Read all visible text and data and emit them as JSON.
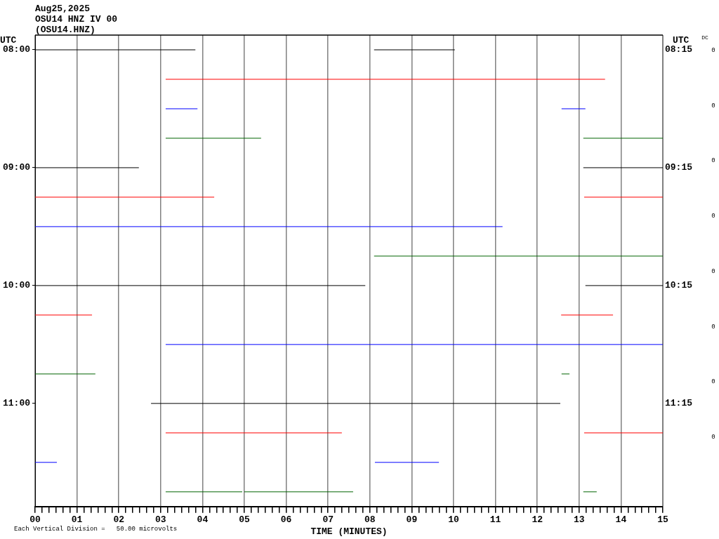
{
  "chart_data": {
    "type": "line",
    "title": "Aug25,2025",
    "subtitle": "OSU14 HNZ IV 00\n(OSU14.HNZ)",
    "xlabel": "TIME (MINUTES)",
    "ylabel": "UTC",
    "y2label": "UTC",
    "annotations": [
      "DC",
      "Each Vertical Division =   50.00 microvolts",
      "0",
      "0",
      "0",
      "0",
      "0",
      "0",
      "0",
      "0"
    ],
    "xlim": [
      0,
      15
    ],
    "xticks": [
      {
        "value": 0,
        "label": "00"
      },
      {
        "value": 0.1667,
        "label": null
      },
      {
        "value": 0.3333,
        "label": null
      },
      {
        "value": 0.5,
        "label": null
      },
      {
        "value": 0.6667,
        "label": null
      },
      {
        "value": 0.8333,
        "label": null
      },
      {
        "value": 1,
        "label": "01"
      },
      {
        "value": 1.1667,
        "label": null
      },
      {
        "value": 1.3333,
        "label": null
      },
      {
        "value": 1.5,
        "label": null
      },
      {
        "value": 1.6667,
        "label": null
      },
      {
        "value": 1.8333,
        "label": null
      },
      {
        "value": 2,
        "label": "02"
      },
      {
        "value": 2.1667,
        "label": null
      },
      {
        "value": 2.3333,
        "label": null
      },
      {
        "value": 2.5,
        "label": null
      },
      {
        "value": 2.6667,
        "label": null
      },
      {
        "value": 2.8333,
        "label": null
      },
      {
        "value": 3,
        "label": "03"
      },
      {
        "value": 3.1667,
        "label": null
      },
      {
        "value": 3.3333,
        "label": null
      },
      {
        "value": 3.5,
        "label": null
      },
      {
        "value": 3.6667,
        "label": null
      },
      {
        "value": 3.8333,
        "label": null
      },
      {
        "value": 4,
        "label": "04"
      },
      {
        "value": 4.1667,
        "label": null
      },
      {
        "value": 4.3333,
        "label": null
      },
      {
        "value": 4.5,
        "label": null
      },
      {
        "value": 4.6667,
        "label": null
      },
      {
        "value": 4.8333,
        "label": null
      },
      {
        "value": 5,
        "label": "05"
      },
      {
        "value": 5.1667,
        "label": null
      },
      {
        "value": 5.3333,
        "label": null
      },
      {
        "value": 5.5,
        "label": null
      },
      {
        "value": 5.6667,
        "label": null
      },
      {
        "value": 5.8333,
        "label": null
      },
      {
        "value": 6,
        "label": "06"
      },
      {
        "value": 6.1667,
        "label": null
      },
      {
        "value": 6.3333,
        "label": null
      },
      {
        "value": 6.5,
        "label": null
      },
      {
        "value": 6.6667,
        "label": null
      },
      {
        "value": 6.8333,
        "label": null
      },
      {
        "value": 7,
        "label": "07"
      },
      {
        "value": 7.1667,
        "label": null
      },
      {
        "value": 7.3333,
        "label": null
      },
      {
        "value": 7.5,
        "label": null
      },
      {
        "value": 7.6667,
        "label": null
      },
      {
        "value": 7.8333,
        "label": null
      },
      {
        "value": 8,
        "label": "08"
      },
      {
        "value": 8.1667,
        "label": null
      },
      {
        "value": 8.3333,
        "label": null
      },
      {
        "value": 8.5,
        "label": null
      },
      {
        "value": 8.6667,
        "label": null
      },
      {
        "value": 8.8333,
        "label": null
      },
      {
        "value": 9,
        "label": "09"
      },
      {
        "value": 9.1667,
        "label": null
      },
      {
        "value": 9.3333,
        "label": null
      },
      {
        "value": 9.5,
        "label": null
      },
      {
        "value": 9.6667,
        "label": null
      },
      {
        "value": 9.8333,
        "label": null
      },
      {
        "value": 10,
        "label": "10"
      },
      {
        "value": 10.1667,
        "label": null
      },
      {
        "value": 10.3333,
        "label": null
      },
      {
        "value": 10.5,
        "label": null
      },
      {
        "value": 10.6667,
        "label": null
      },
      {
        "value": 10.8333,
        "label": null
      },
      {
        "value": 11,
        "label": "11"
      },
      {
        "value": 11.1667,
        "label": null
      },
      {
        "value": 11.3333,
        "label": null
      },
      {
        "value": 11.5,
        "label": null
      },
      {
        "value": 11.6667,
        "label": null
      },
      {
        "value": 11.8333,
        "label": null
      },
      {
        "value": 12,
        "label": "12"
      },
      {
        "value": 12.1667,
        "label": null
      },
      {
        "value": 12.3333,
        "label": null
      },
      {
        "value": 12.5,
        "label": null
      },
      {
        "value": 12.6667,
        "label": null
      },
      {
        "value": 12.8333,
        "label": null
      },
      {
        "value": 13,
        "label": "13"
      },
      {
        "value": 13.1667,
        "label": null
      },
      {
        "value": 13.3333,
        "label": null
      },
      {
        "value": 13.5,
        "label": null
      },
      {
        "value": 13.6667,
        "label": null
      },
      {
        "value": 13.8333,
        "label": null
      },
      {
        "value": 14,
        "label": "14"
      },
      {
        "value": 14.1667,
        "label": null
      },
      {
        "value": 14.3333,
        "label": null
      },
      {
        "value": 14.5,
        "label": null
      },
      {
        "value": 14.6667,
        "label": null
      },
      {
        "value": 14.8333,
        "label": null
      },
      {
        "value": 15,
        "label": "15"
      }
    ],
    "ylim": [
      11.875,
      7.875
    ],
    "yticks": [
      {
        "value": 8,
        "label": "08:00"
      },
      {
        "value": 9,
        "label": "09:00"
      },
      {
        "value": 10,
        "label": "10:00"
      },
      {
        "value": 11,
        "label": "11:00"
      }
    ],
    "y2lim": [
      12.125,
      8.125
    ],
    "y2ticks": [
      {
        "value": 8.25,
        "label": "08:15"
      },
      {
        "value": 9.25,
        "label": "09:15"
      },
      {
        "value": 10.25,
        "label": "10:15"
      },
      {
        "value": 11.25,
        "label": "11:15"
      }
    ],
    "grid": "x",
    "legend": false,
    "series": [
      {
        "color": "#000000",
        "x": [
          0,
          3.83,
          6,
          8.1,
          10.03
        ],
        "values": [
          8,
          8,
          null,
          8,
          8
        ]
      },
      {
        "color": "#ff0000",
        "x": [
          3.12,
          13.62
        ],
        "values": [
          8.25,
          8.25
        ]
      },
      {
        "color": "#0000ff",
        "x": [
          3.12,
          3.88,
          8,
          12.58,
          13.15
        ],
        "values": [
          8.5,
          8.5,
          null,
          8.5,
          8.5
        ]
      },
      {
        "color": "#006400",
        "x": [
          3.12,
          5.4,
          9,
          13.1,
          15
        ],
        "values": [
          8.75,
          8.75,
          null,
          8.75,
          8.75
        ]
      },
      {
        "color": "#000000",
        "x": [
          0,
          2.48,
          8,
          13.1,
          15
        ],
        "values": [
          9,
          9,
          null,
          9,
          9
        ]
      },
      {
        "color": "#ff0000",
        "x": [
          0,
          4.28,
          8,
          13.12,
          15
        ],
        "values": [
          9.25,
          9.25,
          null,
          9.25,
          9.25
        ]
      },
      {
        "color": "#0000ff",
        "x": [
          0,
          11.17
        ],
        "values": [
          9.5,
          9.5
        ]
      },
      {
        "color": "#006400",
        "x": [
          8.1,
          15
        ],
        "values": [
          9.75,
          9.75
        ]
      },
      {
        "color": "#000000",
        "x": [
          0,
          7.89,
          10,
          13.15,
          15
        ],
        "values": [
          10,
          10,
          null,
          10,
          10
        ]
      },
      {
        "color": "#ff0000",
        "x": [
          0,
          1.36,
          7,
          12.57,
          13.81
        ],
        "values": [
          10.25,
          10.25,
          null,
          10.25,
          10.25
        ]
      },
      {
        "color": "#0000ff",
        "x": [
          3.12,
          15
        ],
        "values": [
          10.5,
          10.5
        ]
      },
      {
        "color": "#006400",
        "x": [
          0,
          1.44,
          7,
          12.58,
          12.77
        ],
        "values": [
          10.75,
          10.75,
          null,
          10.75,
          10.75
        ]
      },
      {
        "color": "#000000",
        "x": [
          2.77,
          12.55
        ],
        "values": [
          11,
          11
        ]
      },
      {
        "color": "#ff0000",
        "x": [
          3.12,
          7.33,
          10,
          13.12,
          15
        ],
        "values": [
          11.25,
          11.25,
          null,
          11.25,
          11.25
        ]
      },
      {
        "color": "#0000ff",
        "x": [
          0,
          0.52,
          4,
          8.12,
          9.65
        ],
        "values": [
          11.5,
          11.5,
          null,
          11.5,
          11.5
        ]
      },
      {
        "color": "#006400",
        "x": [
          3.12,
          4.95,
          4.97,
          5.0,
          7.6,
          10,
          13.1,
          13.42
        ],
        "values": [
          11.75,
          11.75,
          null,
          11.75,
          11.75,
          null,
          11.75,
          11.75
        ]
      }
    ]
  }
}
